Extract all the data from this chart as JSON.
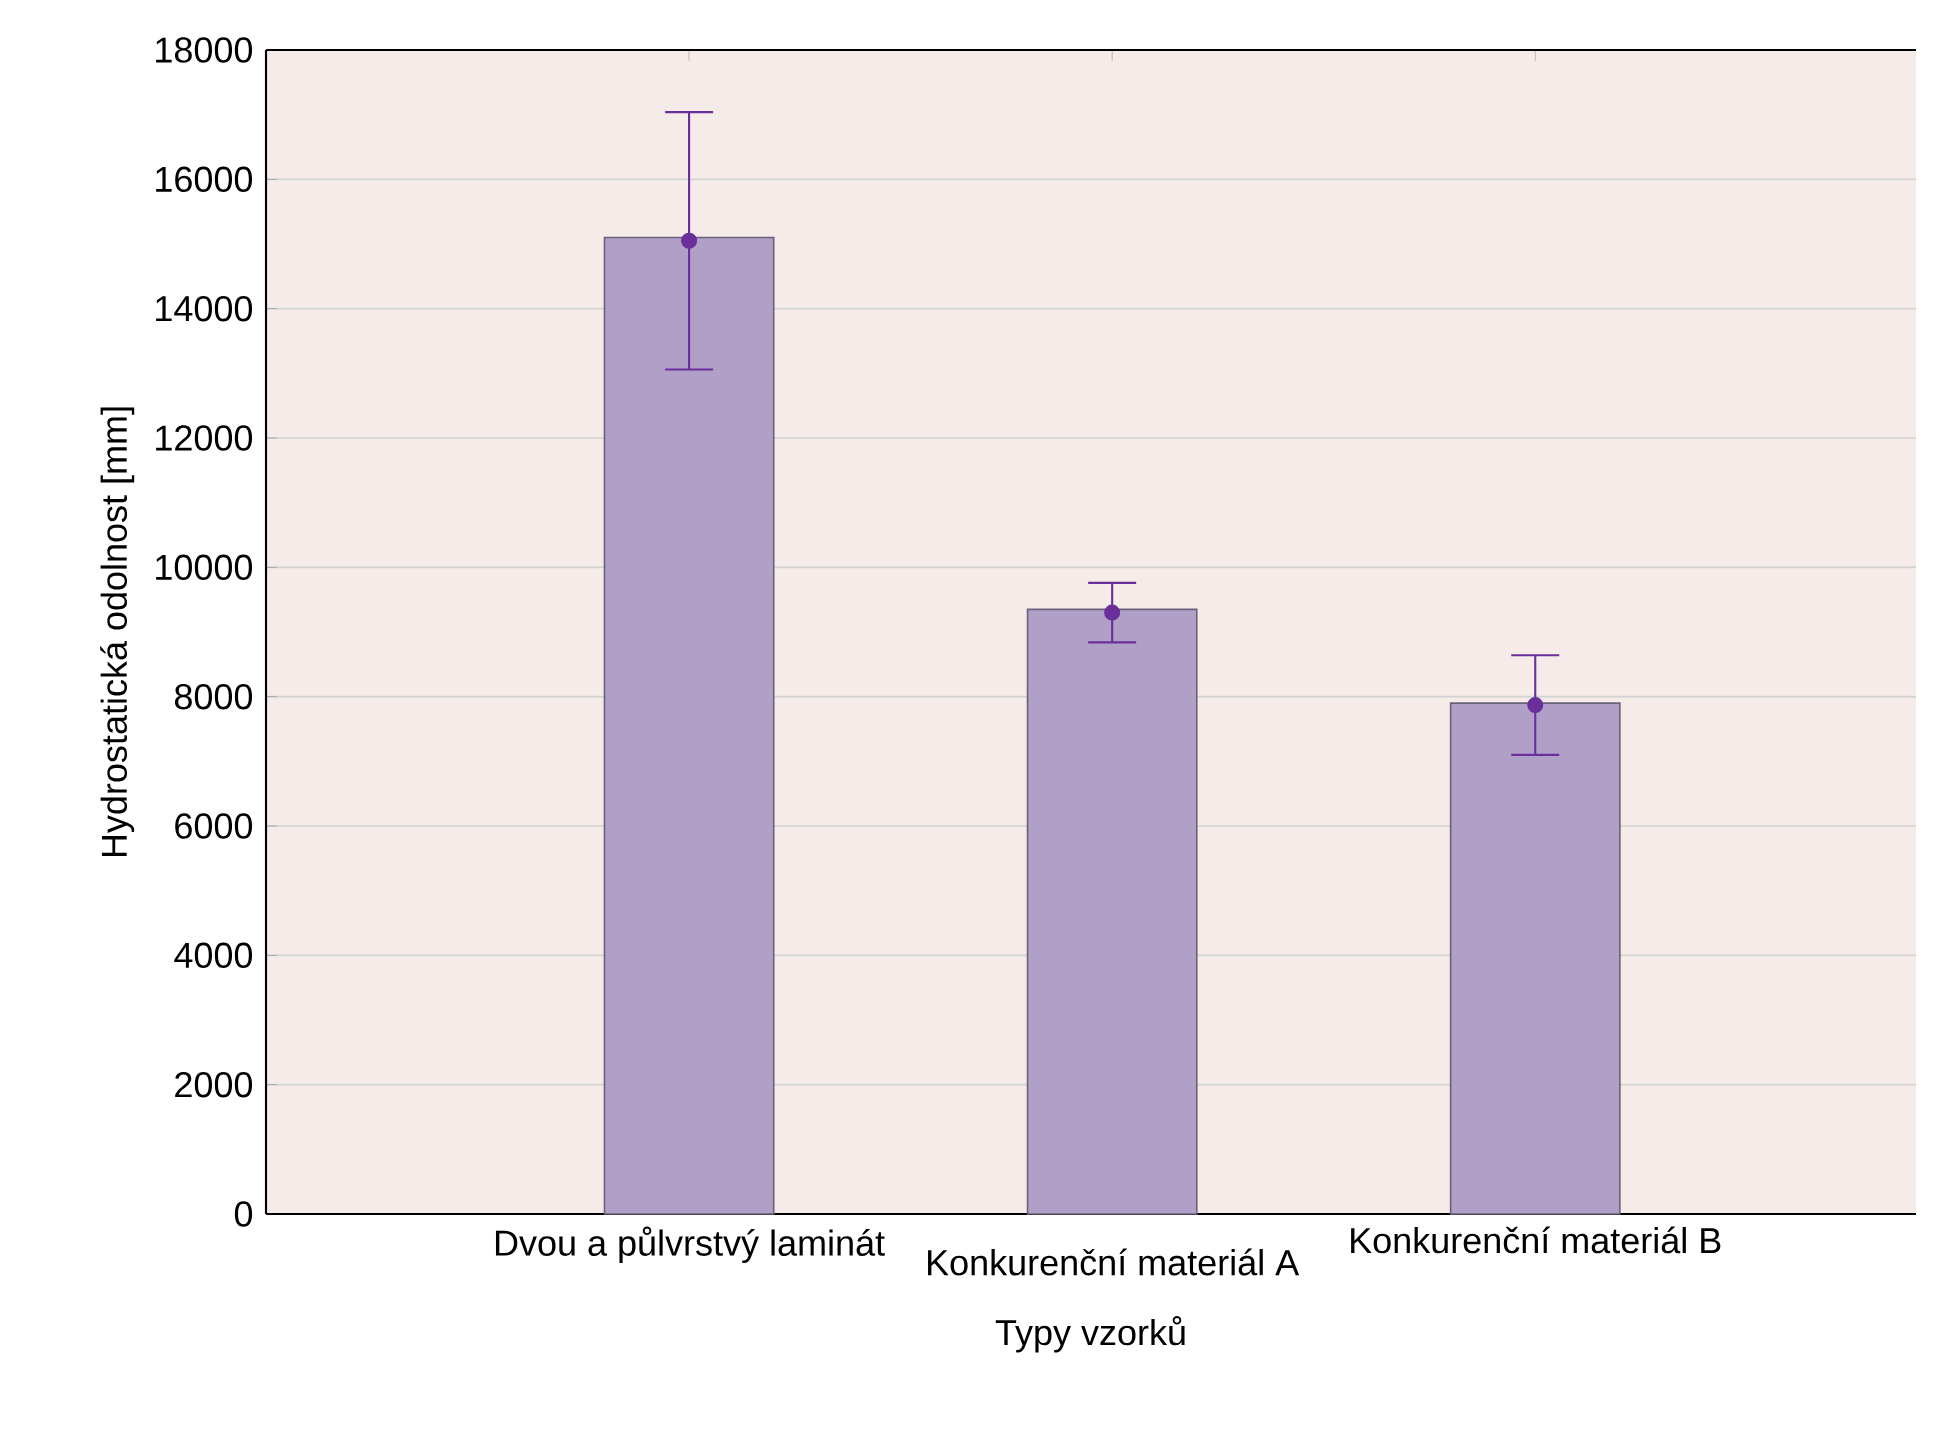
{
  "chart_data": {
    "type": "bar",
    "xlabel": "Typy vzorků",
    "ylabel": "Hydrostatická odolnost [mm]",
    "categories": [
      "Dvou a půlvrstvý laminát",
      "Konkurenční materiál A",
      "Konkurenční materiál B"
    ],
    "series": [
      {
        "type": "bar",
        "color": "#b0a0c8",
        "values": [
          15100,
          9350,
          7900
        ]
      },
      {
        "type": "scatter",
        "color": "#6a2f9a",
        "x": [
          "Dvou a půlvrstvý laminát",
          "Konkurenční materiál A",
          "Konkurenční materiál B"
        ],
        "values": [
          15050,
          9300,
          7870
        ],
        "errors": [
          1990,
          460,
          770
        ]
      }
    ],
    "ylim": [
      0,
      18000
    ],
    "yticks": [
      0,
      2000,
      4000,
      6000,
      8000,
      10000,
      12000,
      14000,
      16000,
      18000
    ],
    "grid": "y"
  }
}
